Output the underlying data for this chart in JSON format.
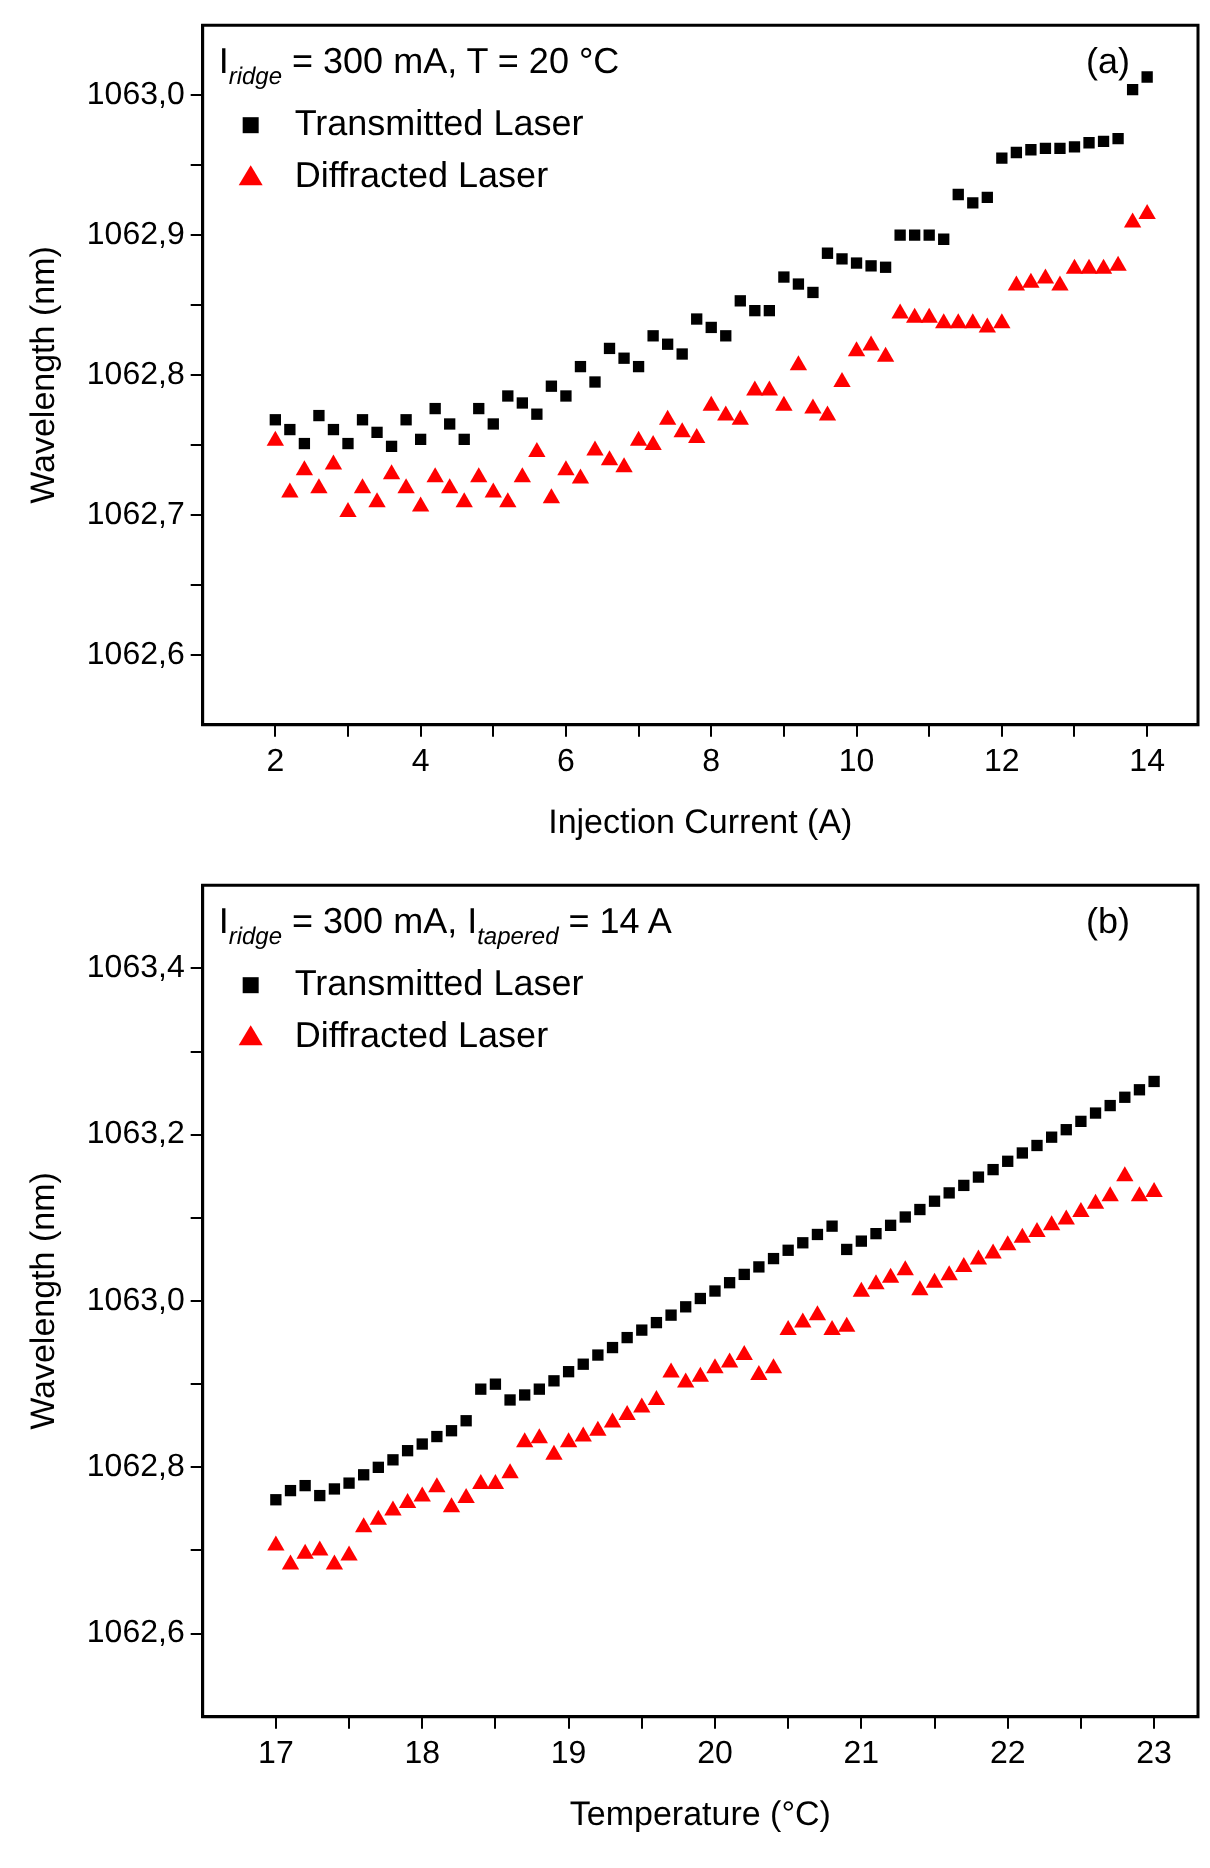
{
  "chart_data": [
    {
      "type": "scatter",
      "xlabel": "Injection Current (A)",
      "ylabel": "Wavelength (nm)",
      "annotations": [
        "I$_{ridge}$ = 300 mA, T = 20 °C",
        "(a)"
      ],
      "legend": "top left",
      "xlim": [
        1,
        14.7
      ],
      "xticks": [
        2,
        {
          "value": 3,
          "label": null
        },
        4,
        {
          "value": 5,
          "label": null
        },
        6,
        {
          "value": 7,
          "label": null
        },
        8,
        {
          "value": 9,
          "label": null
        },
        10,
        {
          "value": 11,
          "label": null
        },
        12,
        {
          "value": 13,
          "label": null
        },
        14
      ],
      "ylim": [
        1062.55,
        1063.05
      ],
      "yticks": [
        {
          "value": 1062.6,
          "label": "1062,6"
        },
        {
          "value": 1062.65,
          "label": null
        },
        {
          "value": 1062.7,
          "label": "1062,7"
        },
        {
          "value": 1062.75,
          "label": null
        },
        {
          "value": 1062.8,
          "label": "1062,8"
        },
        {
          "value": 1062.85,
          "label": null
        },
        {
          "value": 1062.9,
          "label": "1062,9"
        },
        {
          "value": 1062.95,
          "label": null
        },
        {
          "value": 1063.0,
          "label": "1063,0"
        }
      ],
      "x": [
        2.0,
        2.2,
        2.4,
        2.6,
        2.8,
        3.0,
        3.2,
        3.4,
        3.6,
        3.8,
        4.0,
        4.2,
        4.4,
        4.6,
        4.8,
        5.0,
        5.2,
        5.4,
        5.6,
        5.8,
        6.0,
        6.2,
        6.4,
        6.6,
        6.8,
        7.0,
        7.2,
        7.4,
        7.6,
        7.8,
        8.0,
        8.2,
        8.4,
        8.6,
        8.8,
        9.0,
        9.2,
        9.4,
        9.6,
        9.8,
        10.0,
        10.2,
        10.4,
        10.6,
        10.8,
        11.0,
        11.2,
        11.4,
        11.6,
        11.8,
        12.0,
        12.2,
        12.4,
        12.6,
        12.8,
        13.0,
        13.2,
        13.4,
        13.6,
        13.8,
        14.0
      ],
      "series": [
        {
          "name": "Transmitted Laser",
          "color": "#000000",
          "marker": "square",
          "values": [
            1062.768,
            1062.761,
            1062.751,
            1062.771,
            1062.761,
            1062.751,
            1062.768,
            1062.759,
            1062.749,
            1062.768,
            1062.754,
            1062.776,
            1062.765,
            1062.754,
            1062.776,
            1062.765,
            1062.785,
            1062.78,
            1062.772,
            1062.792,
            1062.785,
            1062.806,
            1062.795,
            1062.819,
            1062.812,
            1062.806,
            1062.828,
            1062.822,
            1062.815,
            1062.84,
            1062.834,
            1062.828,
            1062.853,
            1062.846,
            1062.846,
            1062.87,
            1062.865,
            1062.859,
            1062.887,
            1062.883,
            1062.88,
            1062.878,
            1062.877,
            1062.9,
            1062.9,
            1062.9,
            1062.897,
            1062.929,
            1062.923,
            1062.927,
            1062.955,
            1062.959,
            1062.961,
            1062.962,
            1062.962,
            1062.963,
            1062.966,
            1062.967,
            1062.969,
            1063.004,
            1063.013
          ]
        },
        {
          "name": "Diffracted Laser",
          "color": "#ff0000",
          "marker": "triangle",
          "values": [
            1062.753,
            1062.716,
            1062.732,
            1062.719,
            1062.736,
            1062.702,
            1062.719,
            1062.709,
            1062.729,
            1062.719,
            1062.706,
            1062.727,
            1062.719,
            1062.709,
            1062.727,
            1062.716,
            1062.709,
            1062.727,
            1062.745,
            1062.712,
            1062.732,
            1062.726,
            1062.746,
            1062.739,
            1062.734,
            1062.753,
            1062.75,
            1062.768,
            1062.759,
            1062.755,
            1062.778,
            1062.771,
            1062.768,
            1062.789,
            1062.789,
            1062.778,
            1062.807,
            1062.776,
            1062.771,
            1062.795,
            1062.817,
            1062.821,
            1062.813,
            1062.844,
            1062.841,
            1062.841,
            1062.837,
            1062.837,
            1062.837,
            1062.834,
            1062.837,
            1062.864,
            1062.866,
            1062.869,
            1062.864,
            1062.876,
            1062.876,
            1062.876,
            1062.878,
            1062.909,
            1062.915
          ]
        }
      ]
    },
    {
      "type": "scatter",
      "xlabel": "Temperature (°C)",
      "ylabel": "Wavelength (nm)",
      "annotations": [
        "I$_{ridge}$ = 300 mA, I$_{tapered}$ = 14 A",
        "(b)"
      ],
      "legend": "top left",
      "xlim": [
        16.5,
        23.3
      ],
      "xticks": [
        17,
        {
          "value": 17.5,
          "label": null
        },
        18,
        {
          "value": 18.5,
          "label": null
        },
        19,
        {
          "value": 19.5,
          "label": null
        },
        20,
        {
          "value": 20.5,
          "label": null
        },
        21,
        {
          "value": 21.5,
          "label": null
        },
        22,
        {
          "value": 22.5,
          "label": null
        },
        23
      ],
      "ylim": [
        1062.5,
        1063.5
      ],
      "yticks": [
        {
          "value": 1062.6,
          "label": "1062,6"
        },
        {
          "value": 1062.7,
          "label": null
        },
        {
          "value": 1062.8,
          "label": "1062,8"
        },
        {
          "value": 1062.9,
          "label": null
        },
        {
          "value": 1063.0,
          "label": "1063,0"
        },
        {
          "value": 1063.1,
          "label": null
        },
        {
          "value": 1063.2,
          "label": "1063,2"
        },
        {
          "value": 1063.3,
          "label": null
        },
        {
          "value": 1063.4,
          "label": "1063,4"
        }
      ],
      "x": [
        17.0,
        17.1,
        17.2,
        17.3,
        17.4,
        17.5,
        17.6,
        17.7,
        17.8,
        17.9,
        18.0,
        18.1,
        18.2,
        18.3,
        18.4,
        18.5,
        18.6,
        18.7,
        18.8,
        18.9,
        19.0,
        19.1,
        19.2,
        19.3,
        19.4,
        19.5,
        19.6,
        19.7,
        19.8,
        19.9,
        20.0,
        20.1,
        20.2,
        20.3,
        20.4,
        20.5,
        20.6,
        20.7,
        20.8,
        20.9,
        21.0,
        21.1,
        21.2,
        21.3,
        21.4,
        21.5,
        21.6,
        21.7,
        21.8,
        21.9,
        22.0,
        22.1,
        22.2,
        22.3,
        22.4,
        22.5,
        22.6,
        22.7,
        22.8,
        22.9,
        23.0
      ],
      "series": [
        {
          "name": "Transmitted Laser",
          "color": "#000000",
          "marker": "square",
          "values": [
            1062.761,
            1062.772,
            1062.778,
            1062.766,
            1062.774,
            1062.781,
            1062.791,
            1062.8,
            1062.809,
            1062.82,
            1062.828,
            1062.837,
            1062.844,
            1062.856,
            1062.894,
            1062.9,
            1062.881,
            1062.887,
            1062.894,
            1062.904,
            1062.915,
            1062.924,
            1062.935,
            1062.944,
            1062.956,
            1062.965,
            1062.974,
            1062.983,
            1062.993,
            1063.003,
            1063.012,
            1063.022,
            1063.032,
            1063.041,
            1063.051,
            1063.061,
            1063.07,
            1063.08,
            1063.09,
            1063.062,
            1063.072,
            1063.081,
            1063.091,
            1063.101,
            1063.11,
            1063.12,
            1063.13,
            1063.139,
            1063.149,
            1063.158,
            1063.168,
            1063.178,
            1063.187,
            1063.197,
            1063.206,
            1063.216,
            1063.226,
            1063.235,
            1063.245,
            1063.254,
            1063.264
          ]
        },
        {
          "name": "Diffracted Laser",
          "color": "#ff0000",
          "marker": "triangle",
          "values": [
            1062.706,
            1062.683,
            1062.696,
            1062.7,
            1062.683,
            1062.694,
            1062.728,
            1062.737,
            1062.748,
            1062.757,
            1062.765,
            1062.776,
            1062.752,
            1062.763,
            1062.78,
            1062.78,
            1062.793,
            1062.83,
            1062.835,
            1062.815,
            1062.83,
            1062.837,
            1062.844,
            1062.854,
            1062.863,
            1062.872,
            1062.881,
            1062.914,
            1062.902,
            1062.909,
            1062.919,
            1062.926,
            1062.935,
            1062.911,
            1062.919,
            1062.965,
            1062.974,
            1062.983,
            1062.965,
            1062.969,
            1063.011,
            1063.02,
            1063.028,
            1063.037,
            1063.013,
            1063.022,
            1063.031,
            1063.041,
            1063.05,
            1063.057,
            1063.067,
            1063.076,
            1063.083,
            1063.091,
            1063.098,
            1063.107,
            1063.117,
            1063.126,
            1063.15,
            1063.126,
            1063.131
          ]
        }
      ]
    }
  ]
}
